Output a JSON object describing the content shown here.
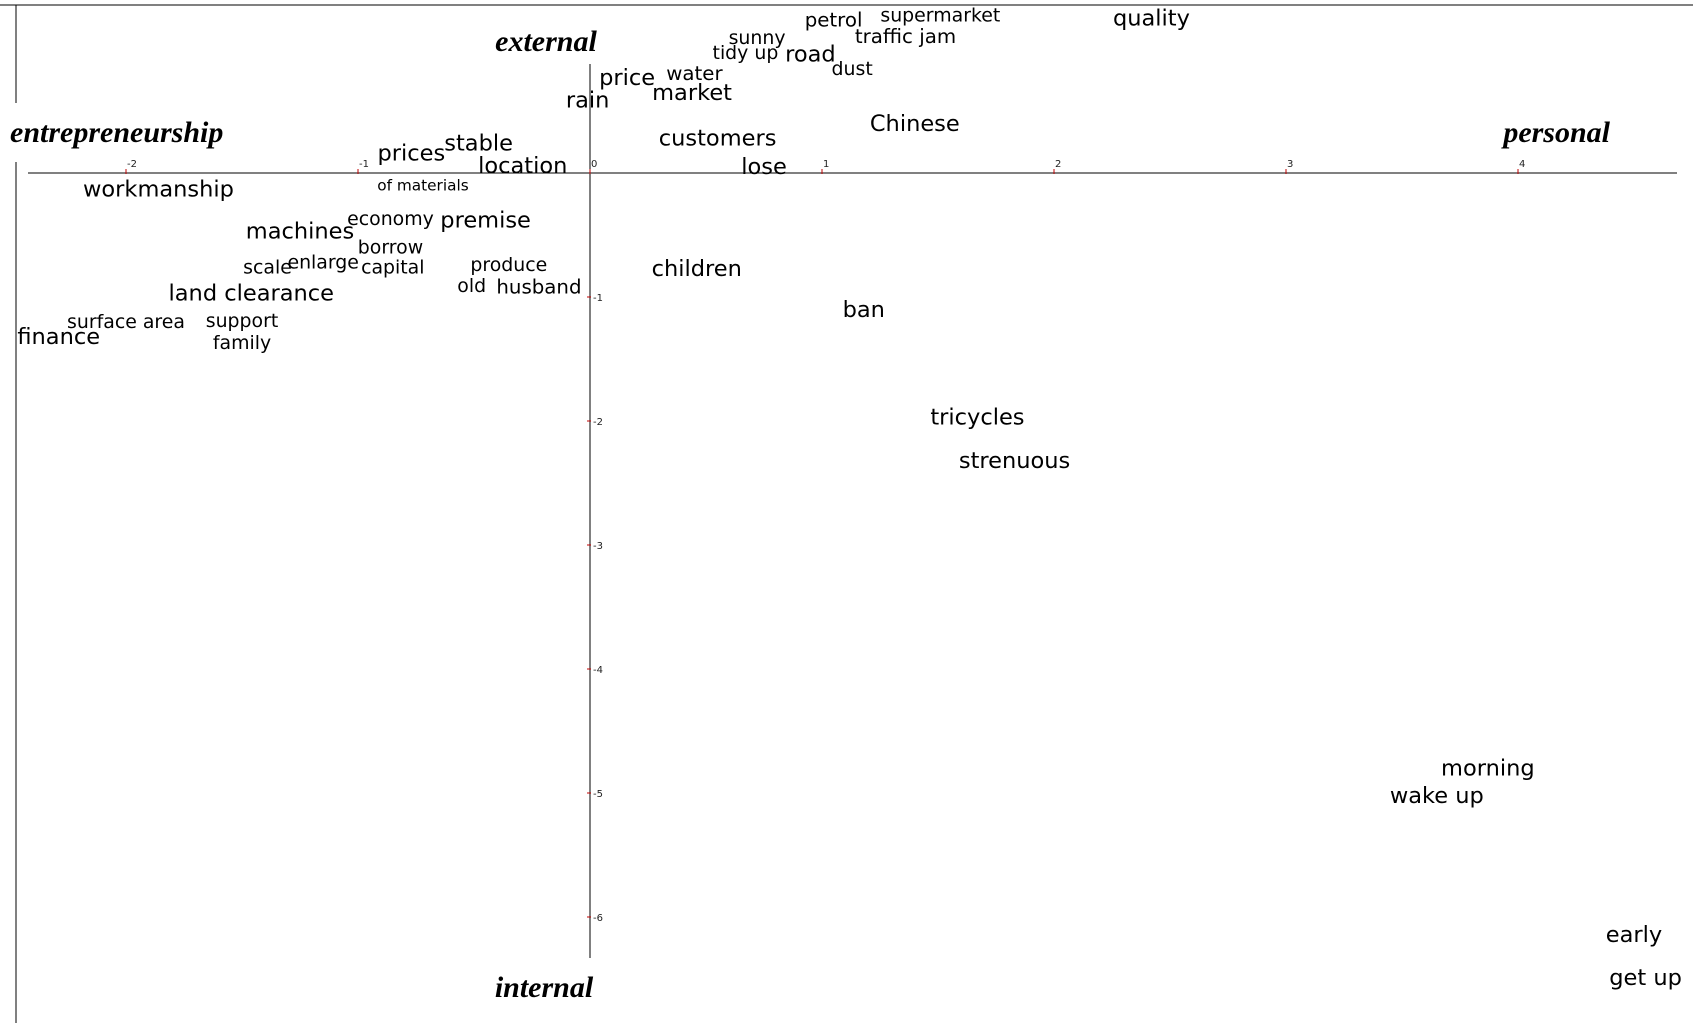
{
  "chart_data": {
    "type": "scatter",
    "axis_labels": {
      "left": "entrepreneurship",
      "right": "personal",
      "top": "external",
      "bottom": "internal"
    },
    "xlim": [
      -2.45,
      4.7
    ],
    "ylim": [
      -6.4,
      1.2
    ],
    "x_ticks": [
      {
        "value": -2,
        "label": "-2"
      },
      {
        "value": -1,
        "label": "-1"
      },
      {
        "value": 0,
        "label": "0"
      },
      {
        "value": 1,
        "label": "1"
      },
      {
        "value": 2,
        "label": "2"
      },
      {
        "value": 3,
        "label": "3"
      },
      {
        "value": 4,
        "label": "4"
      }
    ],
    "y_ticks": [
      {
        "value": -1,
        "label": "-1"
      },
      {
        "value": -2,
        "label": "-2"
      },
      {
        "value": -3,
        "label": "-3"
      },
      {
        "value": -4,
        "label": "-4"
      },
      {
        "value": -5,
        "label": "-5"
      },
      {
        "value": -6,
        "label": "-6"
      }
    ],
    "points": [
      {
        "label": "quality",
        "x": 2.42,
        "y": 1.19,
        "weight": 1.25
      },
      {
        "label": "supermarket",
        "x": 1.51,
        "y": 1.22,
        "weight": 1.05
      },
      {
        "label": "petrol",
        "x": 1.05,
        "y": 1.18,
        "weight": 1.1
      },
      {
        "label": "traffic jam",
        "x": 1.36,
        "y": 1.05,
        "weight": 1.1
      },
      {
        "label": "sunny",
        "x": 0.72,
        "y": 1.04,
        "weight": 1.05
      },
      {
        "label": "tidy up",
        "x": 0.67,
        "y": 0.92,
        "weight": 1.05
      },
      {
        "label": "road",
        "x": 0.95,
        "y": 0.9,
        "weight": 1.25
      },
      {
        "label": "dust",
        "x": 1.13,
        "y": 0.79,
        "weight": 1.05
      },
      {
        "label": "water",
        "x": 0.45,
        "y": 0.75,
        "weight": 1.1
      },
      {
        "label": "price",
        "x": 0.16,
        "y": 0.71,
        "weight": 1.25
      },
      {
        "label": "market",
        "x": 0.44,
        "y": 0.59,
        "weight": 1.25
      },
      {
        "label": "rain",
        "x": -0.01,
        "y": 0.53,
        "weight": 1.25
      },
      {
        "label": "Chinese",
        "x": 1.4,
        "y": 0.34,
        "weight": 1.25
      },
      {
        "label": "customers",
        "x": 0.55,
        "y": 0.22,
        "weight": 1.25
      },
      {
        "label": "stable",
        "x": -0.48,
        "y": 0.18,
        "weight": 1.25
      },
      {
        "label": "prices",
        "x": -0.77,
        "y": 0.1,
        "weight": 1.25
      },
      {
        "label": "location",
        "x": -0.29,
        "y": 0.0,
        "weight": 1.25
      },
      {
        "label": "lose",
        "x": 0.75,
        "y": -0.01,
        "weight": 1.25
      },
      {
        "label": "of materials",
        "x": -0.72,
        "y": -0.14,
        "weight": 0.85
      },
      {
        "label": "workmanship",
        "x": -1.86,
        "y": -0.19,
        "weight": 1.25
      },
      {
        "label": "economy",
        "x": -0.86,
        "y": -0.42,
        "weight": 1.05
      },
      {
        "label": "premise",
        "x": -0.45,
        "y": -0.44,
        "weight": 1.25
      },
      {
        "label": "machines",
        "x": -1.25,
        "y": -0.53,
        "weight": 1.25
      },
      {
        "label": "borrow",
        "x": -0.86,
        "y": -0.65,
        "weight": 1.05
      },
      {
        "label": "produce",
        "x": -0.35,
        "y": -0.79,
        "weight": 1.05
      },
      {
        "label": "scale",
        "x": -1.39,
        "y": -0.81,
        "weight": 1.05
      },
      {
        "label": "enlarge",
        "x": -1.15,
        "y": -0.77,
        "weight": 1.05
      },
      {
        "label": "capital",
        "x": -0.85,
        "y": -0.81,
        "weight": 1.05
      },
      {
        "label": "children",
        "x": 0.46,
        "y": -0.83,
        "weight": 1.25
      },
      {
        "label": "old",
        "x": -0.51,
        "y": -0.96,
        "weight": 1.05
      },
      {
        "label": "husband",
        "x": -0.22,
        "y": -0.97,
        "weight": 1.1
      },
      {
        "label": "land clearance",
        "x": -1.46,
        "y": -1.03,
        "weight": 1.25
      },
      {
        "label": "ban",
        "x": 1.18,
        "y": -1.16,
        "weight": 1.25
      },
      {
        "label": "surface area",
        "x": -2.0,
        "y": -1.25,
        "weight": 1.05
      },
      {
        "label": "support",
        "x": -1.5,
        "y": -1.24,
        "weight": 1.05
      },
      {
        "label": "finance",
        "x": -2.29,
        "y": -1.38,
        "weight": 1.25
      },
      {
        "label": "family",
        "x": -1.5,
        "y": -1.42,
        "weight": 1.05
      },
      {
        "label": "tricycles",
        "x": 1.67,
        "y": -2.03,
        "weight": 1.25
      },
      {
        "label": "strenuous",
        "x": 1.83,
        "y": -2.38,
        "weight": 1.25
      },
      {
        "label": "morning",
        "x": 3.87,
        "y": -4.86,
        "weight": 1.25
      },
      {
        "label": "wake up",
        "x": 3.65,
        "y": -5.08,
        "weight": 1.25
      },
      {
        "label": "early",
        "x": 4.5,
        "y": -6.2,
        "weight": 1.25
      },
      {
        "label": "get up",
        "x": 4.55,
        "y": -6.55,
        "weight": 1.25
      }
    ]
  }
}
